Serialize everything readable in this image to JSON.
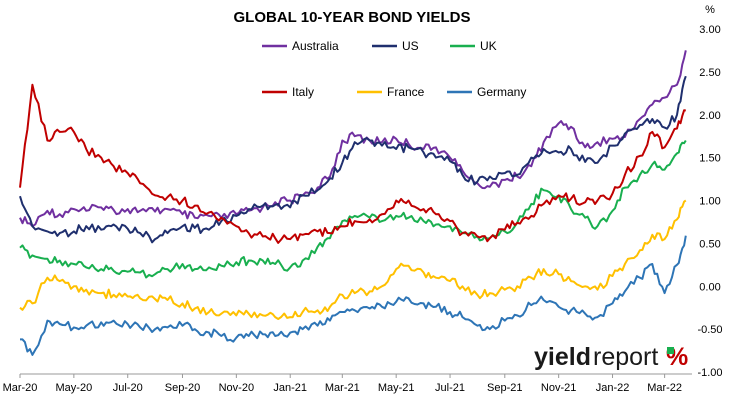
{
  "chart_data": {
    "type": "line",
    "title": "GLOBAL 10-YEAR BOND YIELDS",
    "y_unit": "%",
    "ylim": [
      -1.0,
      3.0
    ],
    "y_ticks": [
      "-1.00",
      "-0.50",
      "0.00",
      "0.50",
      "1.00",
      "1.50",
      "2.00",
      "2.50",
      "3.00"
    ],
    "x_ticks": [
      "Mar-20",
      "May-20",
      "Jul-20",
      "Sep-20",
      "Nov-20",
      "Jan-21",
      "Mar-21",
      "May-21",
      "Jul-21",
      "Sep-21",
      "Nov-21",
      "Jan-22",
      "Mar-22"
    ],
    "legend_position": "top-center",
    "grid": false,
    "x": [
      "2020-03-01",
      "2020-03-15",
      "2020-04-01",
      "2020-04-15",
      "2020-05-01",
      "2020-05-15",
      "2020-06-01",
      "2020-06-15",
      "2020-07-01",
      "2020-07-15",
      "2020-08-01",
      "2020-08-15",
      "2020-09-01",
      "2020-09-15",
      "2020-10-01",
      "2020-10-15",
      "2020-11-01",
      "2020-11-15",
      "2020-12-01",
      "2020-12-15",
      "2021-01-01",
      "2021-01-15",
      "2021-02-01",
      "2021-02-15",
      "2021-03-01",
      "2021-03-15",
      "2021-04-01",
      "2021-04-15",
      "2021-05-01",
      "2021-05-15",
      "2021-06-01",
      "2021-06-15",
      "2021-07-01",
      "2021-07-15",
      "2021-08-01",
      "2021-08-15",
      "2021-09-01",
      "2021-09-15",
      "2021-10-01",
      "2021-10-15",
      "2021-11-01",
      "2021-11-15",
      "2021-12-01",
      "2021-12-15",
      "2022-01-01",
      "2022-01-15",
      "2022-02-01",
      "2022-02-15",
      "2022-03-01",
      "2022-03-15",
      "2022-03-25"
    ],
    "series": [
      {
        "name": "Australia",
        "color": "#7030A0",
        "values": [
          0.8,
          0.7,
          0.88,
          0.84,
          0.9,
          0.88,
          0.92,
          0.89,
          0.9,
          0.88,
          0.87,
          0.9,
          0.84,
          0.8,
          0.82,
          0.8,
          0.84,
          0.88,
          0.92,
          0.98,
          1.0,
          1.06,
          1.15,
          1.28,
          1.7,
          1.75,
          1.7,
          1.68,
          1.72,
          1.66,
          1.6,
          1.62,
          1.5,
          1.35,
          1.2,
          1.16,
          1.24,
          1.28,
          1.4,
          1.68,
          1.9,
          1.86,
          1.62,
          1.68,
          1.72,
          1.74,
          1.95,
          2.12,
          2.2,
          2.35,
          2.75
        ]
      },
      {
        "name": "US",
        "color": "#1F2F6E",
        "values": [
          1.05,
          0.7,
          0.64,
          0.62,
          0.64,
          0.7,
          0.66,
          0.72,
          0.67,
          0.62,
          0.55,
          0.62,
          0.7,
          0.68,
          0.66,
          0.76,
          0.82,
          0.9,
          0.94,
          0.95,
          0.92,
          1.06,
          1.12,
          1.26,
          1.44,
          1.68,
          1.7,
          1.64,
          1.6,
          1.62,
          1.56,
          1.5,
          1.46,
          1.3,
          1.22,
          1.28,
          1.32,
          1.3,
          1.5,
          1.6,
          1.56,
          1.6,
          1.45,
          1.44,
          1.64,
          1.78,
          1.88,
          1.95,
          1.85,
          2.0,
          2.45
        ]
      },
      {
        "name": "UK",
        "color": "#19AF4F",
        "values": [
          0.45,
          0.36,
          0.32,
          0.3,
          0.26,
          0.22,
          0.2,
          0.18,
          0.17,
          0.16,
          0.14,
          0.2,
          0.26,
          0.2,
          0.22,
          0.24,
          0.28,
          0.3,
          0.3,
          0.26,
          0.22,
          0.3,
          0.46,
          0.56,
          0.76,
          0.82,
          0.8,
          0.76,
          0.82,
          0.8,
          0.76,
          0.72,
          0.7,
          0.62,
          0.58,
          0.56,
          0.64,
          0.74,
          0.96,
          1.12,
          1.06,
          0.9,
          0.8,
          0.7,
          0.88,
          1.15,
          1.3,
          1.42,
          1.36,
          1.55,
          1.7
        ]
      },
      {
        "name": "Italy",
        "color": "#C00000",
        "values": [
          1.15,
          2.35,
          1.7,
          1.8,
          1.8,
          1.6,
          1.5,
          1.4,
          1.32,
          1.2,
          1.06,
          1.04,
          1.0,
          0.94,
          0.86,
          0.8,
          0.7,
          0.62,
          0.58,
          0.56,
          0.55,
          0.6,
          0.64,
          0.62,
          0.7,
          0.76,
          0.78,
          0.84,
          1.0,
          1.0,
          0.9,
          0.84,
          0.76,
          0.62,
          0.58,
          0.56,
          0.66,
          0.74,
          0.82,
          0.96,
          1.06,
          1.02,
          0.98,
          1.0,
          1.08,
          1.3,
          1.52,
          1.8,
          1.62,
          1.84,
          2.05
        ]
      },
      {
        "name": "France",
        "color": "#FFC000",
        "values": [
          -0.25,
          -0.2,
          0.1,
          0.06,
          0.0,
          -0.04,
          -0.08,
          -0.1,
          -0.12,
          -0.14,
          -0.15,
          -0.16,
          -0.2,
          -0.26,
          -0.3,
          -0.32,
          -0.34,
          -0.32,
          -0.34,
          -0.36,
          -0.36,
          -0.3,
          -0.28,
          -0.24,
          -0.1,
          -0.08,
          -0.06,
          0.0,
          0.2,
          0.24,
          0.16,
          0.1,
          0.06,
          0.0,
          -0.1,
          -0.08,
          -0.04,
          0.0,
          0.1,
          0.2,
          0.14,
          0.06,
          0.0,
          -0.04,
          0.12,
          0.26,
          0.42,
          0.6,
          0.55,
          0.78,
          1.0
        ]
      },
      {
        "name": "Germany",
        "color": "#2E75B6",
        "values": [
          -0.62,
          -0.8,
          -0.4,
          -0.44,
          -0.48,
          -0.46,
          -0.42,
          -0.4,
          -0.44,
          -0.48,
          -0.5,
          -0.48,
          -0.46,
          -0.5,
          -0.54,
          -0.58,
          -0.6,
          -0.58,
          -0.56,
          -0.58,
          -0.54,
          -0.5,
          -0.46,
          -0.4,
          -0.3,
          -0.28,
          -0.26,
          -0.24,
          -0.18,
          -0.14,
          -0.2,
          -0.24,
          -0.3,
          -0.36,
          -0.46,
          -0.5,
          -0.4,
          -0.34,
          -0.22,
          -0.16,
          -0.24,
          -0.28,
          -0.32,
          -0.36,
          -0.2,
          -0.06,
          0.1,
          0.26,
          -0.08,
          0.25,
          0.59
        ]
      }
    ]
  },
  "branding": {
    "yield": "yield",
    "report": "report",
    "symbol": "%"
  }
}
